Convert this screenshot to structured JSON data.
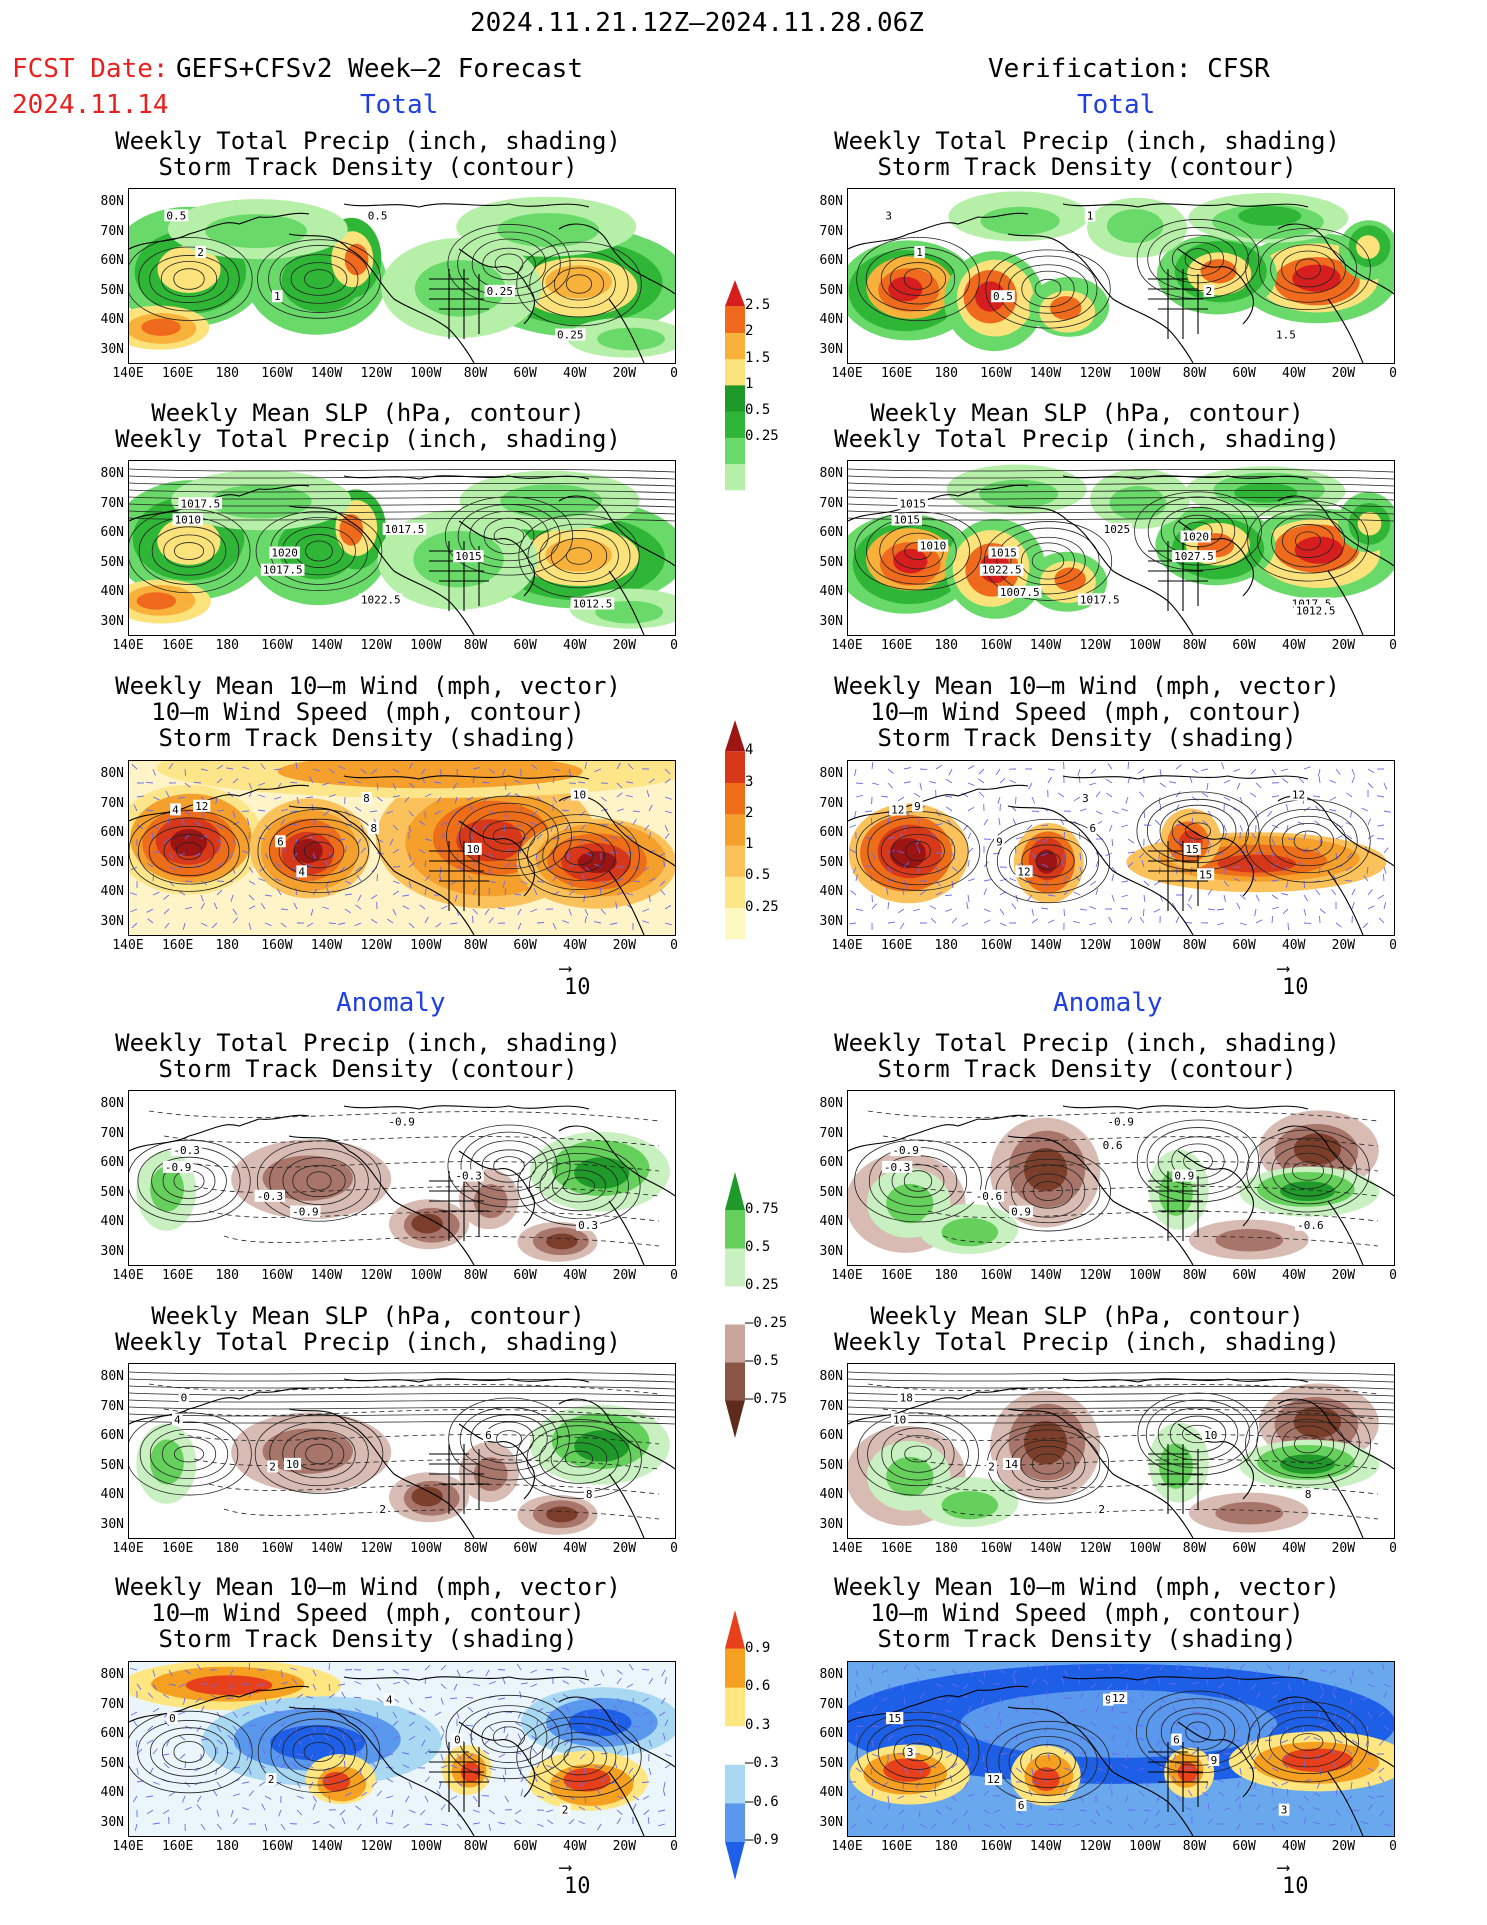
{
  "header": {
    "period": "2024.11.21.12Z—2024.11.28.06Z",
    "fcst_date_label": "FCST Date:",
    "fcst_date": "2024.11.14",
    "model": "GEFS+CFSv2 Week–2 Forecast",
    "verification": "Verification: CFSR"
  },
  "sections": {
    "total": "Total",
    "anomaly": "Anomaly"
  },
  "titles": {
    "precip_track": [
      "Weekly Total Precip (inch, shading)",
      "Storm Track Density (contour)"
    ],
    "slp_precip": [
      "Weekly Mean SLP (hPa, contour)",
      "Weekly Total Precip (inch, shading)"
    ],
    "wind": [
      "Weekly Mean 10–m Wind (mph, vector)",
      "10–m Wind Speed (mph, contour)",
      "Storm Track Density (shading)"
    ]
  },
  "axes": {
    "lat": [
      "80N",
      "70N",
      "60N",
      "50N",
      "40N",
      "30N"
    ],
    "lon": [
      "140E",
      "160E",
      "180",
      "160W",
      "140W",
      "120W",
      "100W",
      "80W",
      "60W",
      "40W",
      "20W",
      "0"
    ]
  },
  "colorbars": {
    "precip_total": [
      "2.5",
      "2",
      "1.5",
      "1",
      "0.5",
      "0.25"
    ],
    "density_total": [
      "4",
      "3",
      "2",
      "1",
      "0.5",
      "0.25"
    ],
    "precip_anom": [
      "0.75",
      "0.5",
      "0.25",
      "–0.25",
      "–0.5",
      "–0.75"
    ],
    "density_anom": [
      "0.9",
      "0.6",
      "0.3",
      "–0.3",
      "–0.6",
      "–0.9"
    ]
  },
  "vector_ref": "10",
  "contour_labels": {
    "fc_precip": [
      "0.5",
      "1",
      "0.5",
      "0.25",
      "0.25",
      "2"
    ],
    "vf_precip": [
      "3",
      "0.5",
      "1",
      "2",
      "1.5",
      "1"
    ],
    "fc_slp": [
      "1017.5",
      "1020",
      "1022.5",
      "1015",
      "1012.5",
      "1010",
      "1017.5",
      "1017.5"
    ],
    "vf_slp": [
      "1015",
      "1015",
      "1017.5",
      "1027.5",
      "1017.5",
      "1015",
      "1022.5",
      "1025",
      "1020",
      "1012.5",
      "1010",
      "1007.5"
    ],
    "fc_wind": [
      "4",
      "6",
      "8",
      "10",
      "10",
      "12",
      "4",
      "8"
    ],
    "vf_wind": [
      "12",
      "9",
      "3",
      "15",
      "12",
      "9",
      "12",
      "6",
      "15"
    ],
    "fa_precip": [
      "-0.9",
      "-0.3",
      "-0.9",
      "-0.3",
      "0.3",
      "-0.3",
      "-0.9"
    ],
    "va_precip": [
      "-0.3",
      "-0.6",
      "-0.9",
      "0.9",
      "-0.6",
      "-0.9",
      "0.9",
      "0.6"
    ],
    "fa_slp": [
      "0",
      "10",
      "2",
      "6",
      "8",
      "4",
      "2"
    ],
    "va_slp": [
      "18",
      "14",
      "2",
      "10",
      "8",
      "10",
      "2"
    ],
    "fa_wind": [
      "0",
      "2",
      "4",
      "0",
      "2"
    ],
    "va_wind": [
      "15",
      "12",
      "9",
      "6",
      "3",
      "3",
      "6",
      "12",
      "9"
    ]
  },
  "colors": {
    "title_blue": "#1f3fe0",
    "fcst_red": "#e8201e"
  }
}
